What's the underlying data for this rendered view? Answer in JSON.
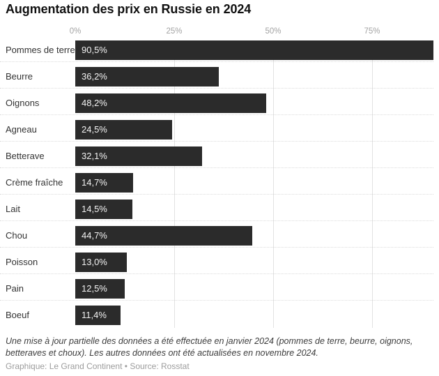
{
  "title": "Augmentation des prix en Russie en 2024",
  "chart_data": {
    "type": "bar",
    "orientation": "horizontal",
    "title": "Augmentation des prix en Russie en 2024",
    "categories": [
      "Pommes de terre",
      "Beurre",
      "Oignons",
      "Agneau",
      "Betterave",
      "Crème fraîche",
      "Lait",
      "Chou",
      "Poisson",
      "Pain",
      "Boeuf"
    ],
    "values": [
      90.5,
      36.2,
      48.2,
      24.5,
      32.1,
      14.7,
      14.5,
      44.7,
      13.0,
      12.5,
      11.4
    ],
    "value_labels": [
      "90,5%",
      "36,2%",
      "48,2%",
      "24,5%",
      "32,1%",
      "14,7%",
      "14,5%",
      "44,7%",
      "13,0%",
      "12,5%",
      "11,4%"
    ],
    "x_ticks": [
      "0%",
      "25%",
      "50%",
      "75%"
    ],
    "x_tick_values": [
      0,
      25,
      50,
      75
    ],
    "xlim": [
      0,
      90.5
    ],
    "grid": true,
    "legend": "none",
    "bar_color": "#2b2b2b",
    "value_label_color": "#f2f2f2"
  },
  "footer": {
    "note": "Une mise à jour partielle des données a été effectuée en janvier 2024 (pommes de terre, beurre, oignons, betteraves et choux). Les autres données ont été actualisées en novembre 2024.",
    "credit": "Graphique: Le Grand Continent • Source: Rosstat"
  }
}
